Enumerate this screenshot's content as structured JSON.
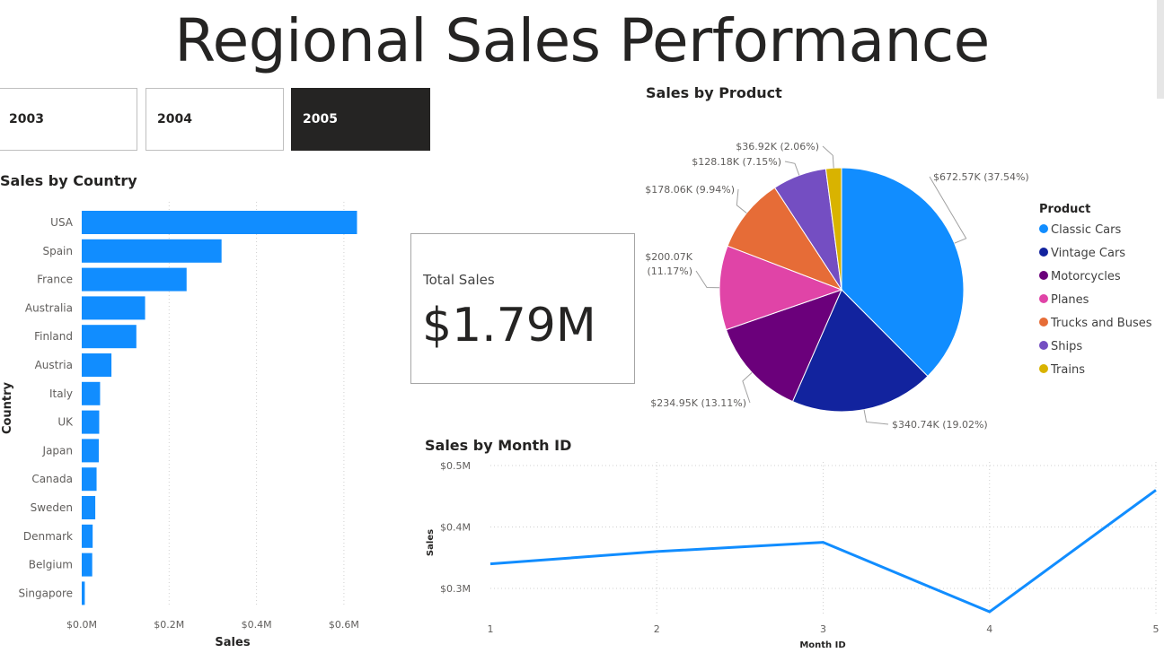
{
  "page": {
    "title": "Regional Sales Performance"
  },
  "slicer": {
    "options": [
      "2003",
      "2004",
      "2005"
    ],
    "selected": "2005"
  },
  "card": {
    "label": "Total Sales",
    "value": "$1.79M"
  },
  "colors": {
    "bar": "#118DFF",
    "line": "#118DFF",
    "selected_bg": "#252423",
    "pie": [
      "#118DFF",
      "#12239E",
      "#6B007B",
      "#E044A7",
      "#E66C37",
      "#744EC2",
      "#D9B300"
    ]
  },
  "chart_data": [
    {
      "id": "country",
      "type": "bar",
      "orientation": "horizontal",
      "title": "Sales by Country",
      "xlabel": "Sales",
      "ylabel": "Country",
      "categories": [
        "USA",
        "Spain",
        "France",
        "Australia",
        "Finland",
        "Austria",
        "Italy",
        "UK",
        "Japan",
        "Canada",
        "Sweden",
        "Denmark",
        "Belgium",
        "Singapore"
      ],
      "values": [
        0.63,
        0.32,
        0.24,
        0.145,
        0.125,
        0.068,
        0.042,
        0.04,
        0.039,
        0.034,
        0.031,
        0.025,
        0.024,
        0.007
      ],
      "xlim": [
        0,
        0.7
      ],
      "xticks": [
        0,
        0.2,
        0.4,
        0.6
      ],
      "xtick_labels": [
        "$0.0M",
        "$0.2M",
        "$0.4M",
        "$0.6M"
      ],
      "grid": true
    },
    {
      "id": "product",
      "type": "pie",
      "title": "Sales by Product",
      "legend_title": "Product",
      "legend_position": "right",
      "slices": [
        {
          "label": "Classic Cars",
          "value": 672.57,
          "data_label": "$672.57K (37.54%)"
        },
        {
          "label": "Vintage Cars",
          "value": 340.74,
          "data_label": "$340.74K (19.02%)"
        },
        {
          "label": "Motorcycles",
          "value": 234.95,
          "data_label": "$234.95K (13.11%)"
        },
        {
          "label": "Planes",
          "value": 200.07,
          "data_label": "$200.07K (11.17%)"
        },
        {
          "label": "Trucks and Buses",
          "value": 178.06,
          "data_label": "$178.06K (9.94%)"
        },
        {
          "label": "Ships",
          "value": 128.18,
          "data_label": "$128.18K (7.15%)"
        },
        {
          "label": "Trains",
          "value": 36.92,
          "data_label": "$36.92K (2.06%)"
        }
      ]
    },
    {
      "id": "month",
      "type": "line",
      "title": "Sales by Month ID",
      "xlabel": "Month ID",
      "ylabel": "Sales",
      "x": [
        1,
        2,
        3,
        4,
        5
      ],
      "y": [
        0.34,
        0.36,
        0.375,
        0.262,
        0.46
      ],
      "ylim": [
        0.27,
        0.5
      ],
      "yticks": [
        0.3,
        0.4,
        0.5
      ],
      "ytick_labels": [
        "$0.3M",
        "$0.4M",
        "$0.5M"
      ],
      "xtick_labels": [
        "1",
        "2",
        "3",
        "4",
        "5"
      ],
      "grid": true
    }
  ]
}
